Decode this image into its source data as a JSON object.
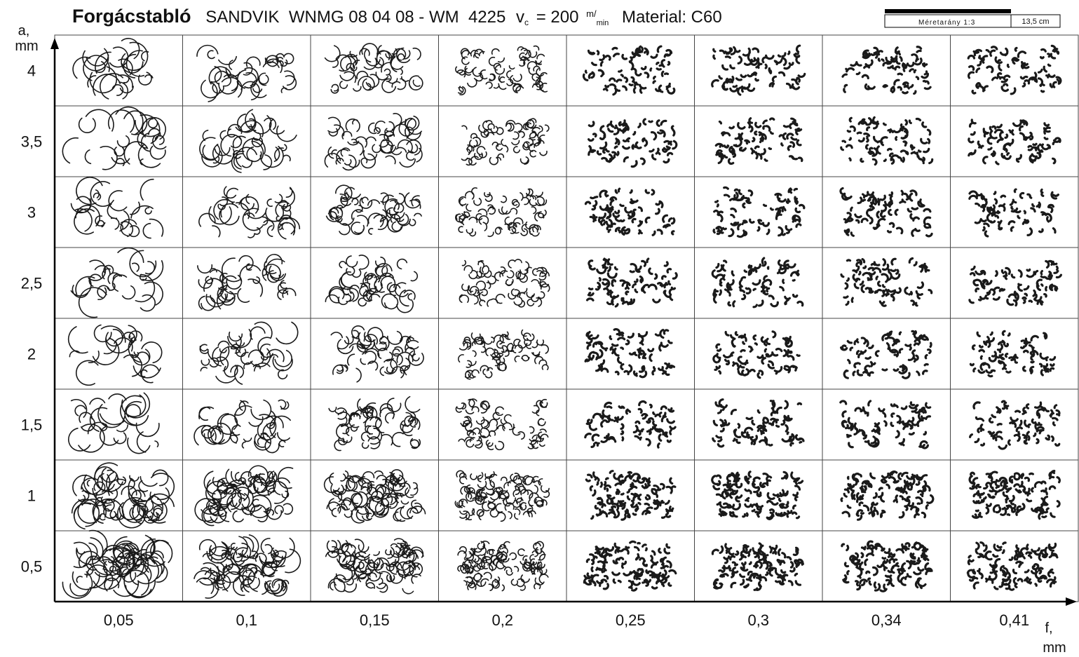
{
  "header": {
    "title": "Forgácstabló",
    "tool": "SANDVIK  WNMG 08 04 08 - WM  4225",
    "speed_symbol": "v",
    "speed_subscript": "c",
    "speed_value": "= 200",
    "speed_unit_num": "m",
    "speed_unit_den": "min",
    "material": "Material: C60",
    "scale_ratio": "Méretarány 1:3",
    "scale_length": "13,5 cm"
  },
  "y_axis": {
    "label": "a,",
    "unit": "mm",
    "rows": [
      "4",
      "3,5",
      "3",
      "2,5",
      "2",
      "1,5",
      "1",
      "0,5"
    ]
  },
  "x_axis": {
    "label": "f,",
    "unit": "mm",
    "columns": [
      "0,05",
      "0,1",
      "0,15",
      "0,2",
      "0,25",
      "0,3",
      "0,34",
      "0,41"
    ]
  }
}
